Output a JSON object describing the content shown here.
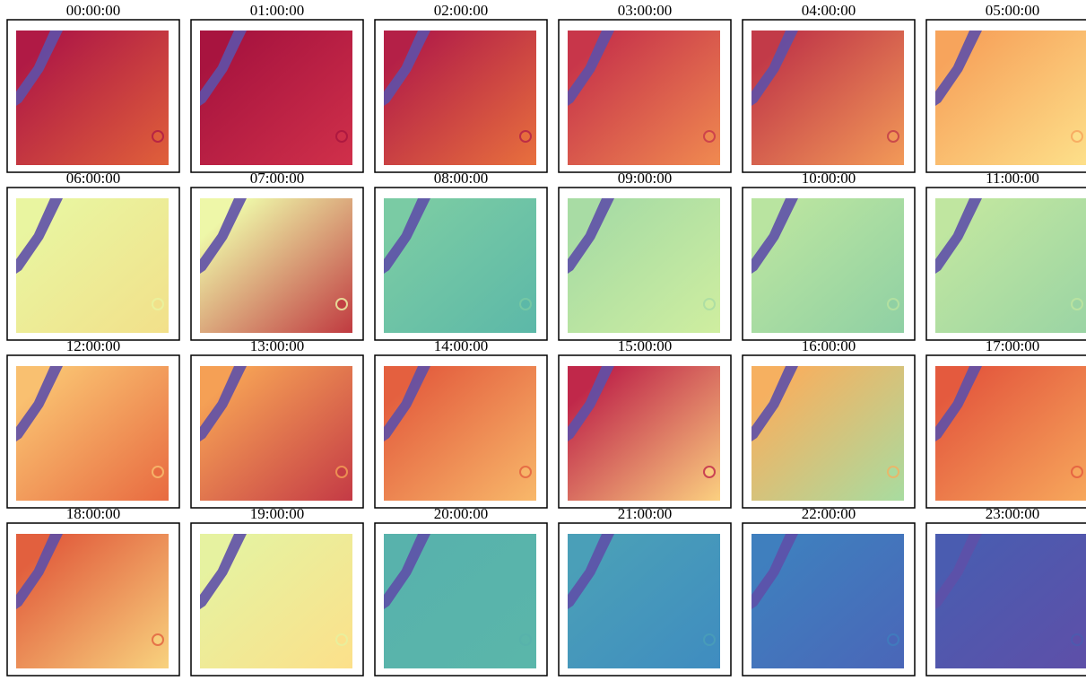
{
  "panels": [
    {
      "title": "00:00:00",
      "color": "#b01a45",
      "accent": "#e0603a"
    },
    {
      "title": "01:00:00",
      "color": "#a8143f",
      "accent": "#d0304a"
    },
    {
      "title": "02:00:00",
      "color": "#b42047",
      "accent": "#e8703d"
    },
    {
      "title": "03:00:00",
      "color": "#c8364a",
      "accent": "#f08a50"
    },
    {
      "title": "04:00:00",
      "color": "#c23a48",
      "accent": "#f29a58"
    },
    {
      "title": "05:00:00",
      "color": "#f7a45c",
      "accent": "#fde08a"
    },
    {
      "title": "06:00:00",
      "color": "#e9f5a0",
      "accent": "#f2e08a"
    },
    {
      "title": "07:00:00",
      "color": "#eef7a8",
      "accent": "#c03a40"
    },
    {
      "title": "08:00:00",
      "color": "#7acba4",
      "accent": "#5cb8a8"
    },
    {
      "title": "09:00:00",
      "color": "#a8dca4",
      "accent": "#cfeea0"
    },
    {
      "title": "10:00:00",
      "color": "#b9e4a0",
      "accent": "#8fd0a4"
    },
    {
      "title": "11:00:00",
      "color": "#c0e6a0",
      "accent": "#9ad4a4"
    },
    {
      "title": "12:00:00",
      "color": "#f9c070",
      "accent": "#e86a40"
    },
    {
      "title": "13:00:00",
      "color": "#f5a055",
      "accent": "#c43a45"
    },
    {
      "title": "14:00:00",
      "color": "#e4603f",
      "accent": "#f8b86a"
    },
    {
      "title": "15:00:00",
      "color": "#c0284a",
      "accent": "#fbd080"
    },
    {
      "title": "16:00:00",
      "color": "#f6b060",
      "accent": "#a8dca0"
    },
    {
      "title": "17:00:00",
      "color": "#e45a3e",
      "accent": "#f7a85c"
    },
    {
      "title": "18:00:00",
      "color": "#e2603e",
      "accent": "#f8d27e"
    },
    {
      "title": "19:00:00",
      "color": "#e6f2a0",
      "accent": "#fce08a"
    },
    {
      "title": "20:00:00",
      "color": "#58b2ac",
      "accent": "#5ab6aa"
    },
    {
      "title": "21:00:00",
      "color": "#4a9fb8",
      "accent": "#3f8cc0"
    },
    {
      "title": "22:00:00",
      "color": "#3f7fbe",
      "accent": "#4a66b8"
    },
    {
      "title": "23:00:00",
      "color": "#4a5cb0",
      "accent": "#5e4fa8"
    }
  ]
}
